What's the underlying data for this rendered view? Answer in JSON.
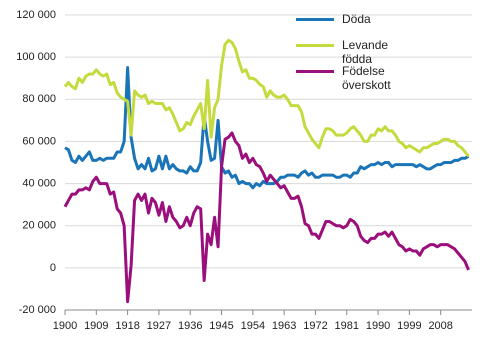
{
  "chart_data": {
    "type": "line",
    "x": [
      1900,
      1901,
      1902,
      1903,
      1904,
      1905,
      1906,
      1907,
      1908,
      1909,
      1910,
      1911,
      1912,
      1913,
      1914,
      1915,
      1916,
      1917,
      1918,
      1919,
      1920,
      1921,
      1922,
      1923,
      1924,
      1925,
      1926,
      1927,
      1928,
      1929,
      1930,
      1931,
      1932,
      1933,
      1934,
      1935,
      1936,
      1937,
      1938,
      1939,
      1940,
      1941,
      1942,
      1943,
      1944,
      1945,
      1946,
      1947,
      1948,
      1949,
      1950,
      1951,
      1952,
      1953,
      1954,
      1955,
      1956,
      1957,
      1958,
      1959,
      1960,
      1961,
      1962,
      1963,
      1964,
      1965,
      1966,
      1967,
      1968,
      1969,
      1970,
      1971,
      1972,
      1973,
      1974,
      1975,
      1976,
      1977,
      1978,
      1979,
      1980,
      1981,
      1982,
      1983,
      1984,
      1985,
      1986,
      1987,
      1988,
      1989,
      1990,
      1991,
      1992,
      1993,
      1994,
      1995,
      1996,
      1997,
      1998,
      1999,
      2000,
      2001,
      2002,
      2003,
      2004,
      2005,
      2006,
      2007,
      2008,
      2009,
      2010,
      2011,
      2012,
      2013,
      2014,
      2015,
      2016
    ],
    "series": [
      {
        "name": "Döda",
        "color": "#1a74b8",
        "values": [
          57000,
          56000,
          51000,
          50000,
          53000,
          51000,
          53000,
          55000,
          51000,
          51000,
          52000,
          51000,
          52000,
          52000,
          52000,
          55000,
          55000,
          60000,
          95000,
          62000,
          52000,
          47000,
          49000,
          47000,
          52000,
          46000,
          47000,
          53000,
          47000,
          53000,
          47000,
          49000,
          47000,
          46000,
          46000,
          45000,
          48000,
          46000,
          46000,
          50000,
          72000,
          60000,
          51000,
          52000,
          70000,
          48000,
          45000,
          46000,
          43000,
          44000,
          40000,
          41000,
          40000,
          40000,
          38000,
          40000,
          39000,
          41000,
          40000,
          40000,
          40000,
          41000,
          43000,
          43000,
          44000,
          44000,
          44000,
          43000,
          45000,
          46000,
          44000,
          45000,
          43000,
          43000,
          44000,
          44000,
          44000,
          44000,
          43000,
          43000,
          44000,
          44000,
          43000,
          45000,
          45000,
          48000,
          47000,
          48000,
          49000,
          49000,
          50000,
          49000,
          50000,
          50000,
          48000,
          49000,
          49000,
          49000,
          49000,
          49000,
          49000,
          48000,
          49000,
          48000,
          47000,
          47000,
          48000,
          49000,
          49000,
          50000,
          50000,
          50000,
          51000,
          51000,
          52000,
          52000,
          53000
        ]
      },
      {
        "name": "Levande födda",
        "color": "#c5da3e",
        "values": [
          86000,
          88000,
          86000,
          85000,
          90000,
          88000,
          91000,
          92000,
          92000,
          94000,
          92000,
          91000,
          92000,
          87000,
          88000,
          83000,
          81000,
          80000,
          79000,
          63000,
          84000,
          82000,
          81000,
          82000,
          78000,
          79000,
          78000,
          78000,
          78000,
          75000,
          76000,
          73000,
          69000,
          65000,
          66000,
          69000,
          68000,
          72000,
          75000,
          78000,
          66000,
          89000,
          62000,
          76000,
          80000,
          96000,
          106000,
          108000,
          107000,
          104000,
          98000,
          93000,
          94000,
          90000,
          90000,
          89000,
          87000,
          86000,
          81000,
          84000,
          82000,
          81000,
          81000,
          82000,
          80000,
          77000,
          77000,
          77000,
          74000,
          67000,
          64000,
          61000,
          59000,
          57000,
          62000,
          66000,
          66000,
          65000,
          63000,
          63000,
          63000,
          64000,
          66000,
          67000,
          65000,
          63000,
          60000,
          60000,
          63000,
          63000,
          66000,
          65000,
          67000,
          65000,
          65000,
          63000,
          60000,
          59000,
          57000,
          58000,
          57000,
          56000,
          55000,
          57000,
          57000,
          58000,
          59000,
          59000,
          60000,
          61000,
          61000,
          60000,
          60000,
          58000,
          57000,
          55000,
          53000
        ]
      },
      {
        "name": "Födelse överskott",
        "color": "#9a0f7c",
        "values": [
          29000,
          32000,
          35000,
          35000,
          37000,
          37000,
          38000,
          37000,
          41000,
          43000,
          40000,
          40000,
          40000,
          35000,
          36000,
          28000,
          26000,
          20000,
          -16000,
          1000,
          32000,
          35000,
          32000,
          35000,
          26000,
          33000,
          31000,
          25000,
          31000,
          22000,
          29000,
          24000,
          22000,
          19000,
          20000,
          24000,
          20000,
          26000,
          29000,
          28000,
          -6000,
          16000,
          11000,
          24000,
          10000,
          48000,
          61000,
          62000,
          64000,
          60000,
          58000,
          52000,
          54000,
          50000,
          52000,
          49000,
          48000,
          45000,
          41000,
          44000,
          42000,
          40000,
          38000,
          39000,
          36000,
          33000,
          33000,
          34000,
          29000,
          21000,
          20000,
          16000,
          16000,
          14000,
          18000,
          22000,
          22000,
          21000,
          20000,
          20000,
          19000,
          20000,
          23000,
          22000,
          20000,
          15000,
          13000,
          12000,
          14000,
          14000,
          16000,
          16000,
          17000,
          15000,
          17000,
          14000,
          11000,
          10000,
          8000,
          9000,
          8000,
          8000,
          6000,
          9000,
          10000,
          11000,
          11000,
          10000,
          11000,
          11000,
          11000,
          10000,
          9000,
          7000,
          5000,
          3000,
          -1000
        ]
      }
    ],
    "xlim": [
      1900,
      2017
    ],
    "xticks": [
      1900,
      1909,
      1918,
      1927,
      1936,
      1945,
      1954,
      1963,
      1972,
      1981,
      1990,
      1999,
      2008
    ],
    "ylim": [
      -20000,
      120000
    ],
    "yticks": [
      {
        "value": -20000,
        "label": "-20 000"
      },
      0,
      {
        "value": 20000,
        "label": "20 000"
      },
      {
        "value": 40000,
        "label": "40 000"
      },
      {
        "value": 60000,
        "label": "60 000"
      },
      {
        "value": 80000,
        "label": "80 000"
      },
      {
        "value": 100000,
        "label": "100 000"
      },
      {
        "value": 120000,
        "label": "120 000"
      }
    ],
    "grid": true
  }
}
